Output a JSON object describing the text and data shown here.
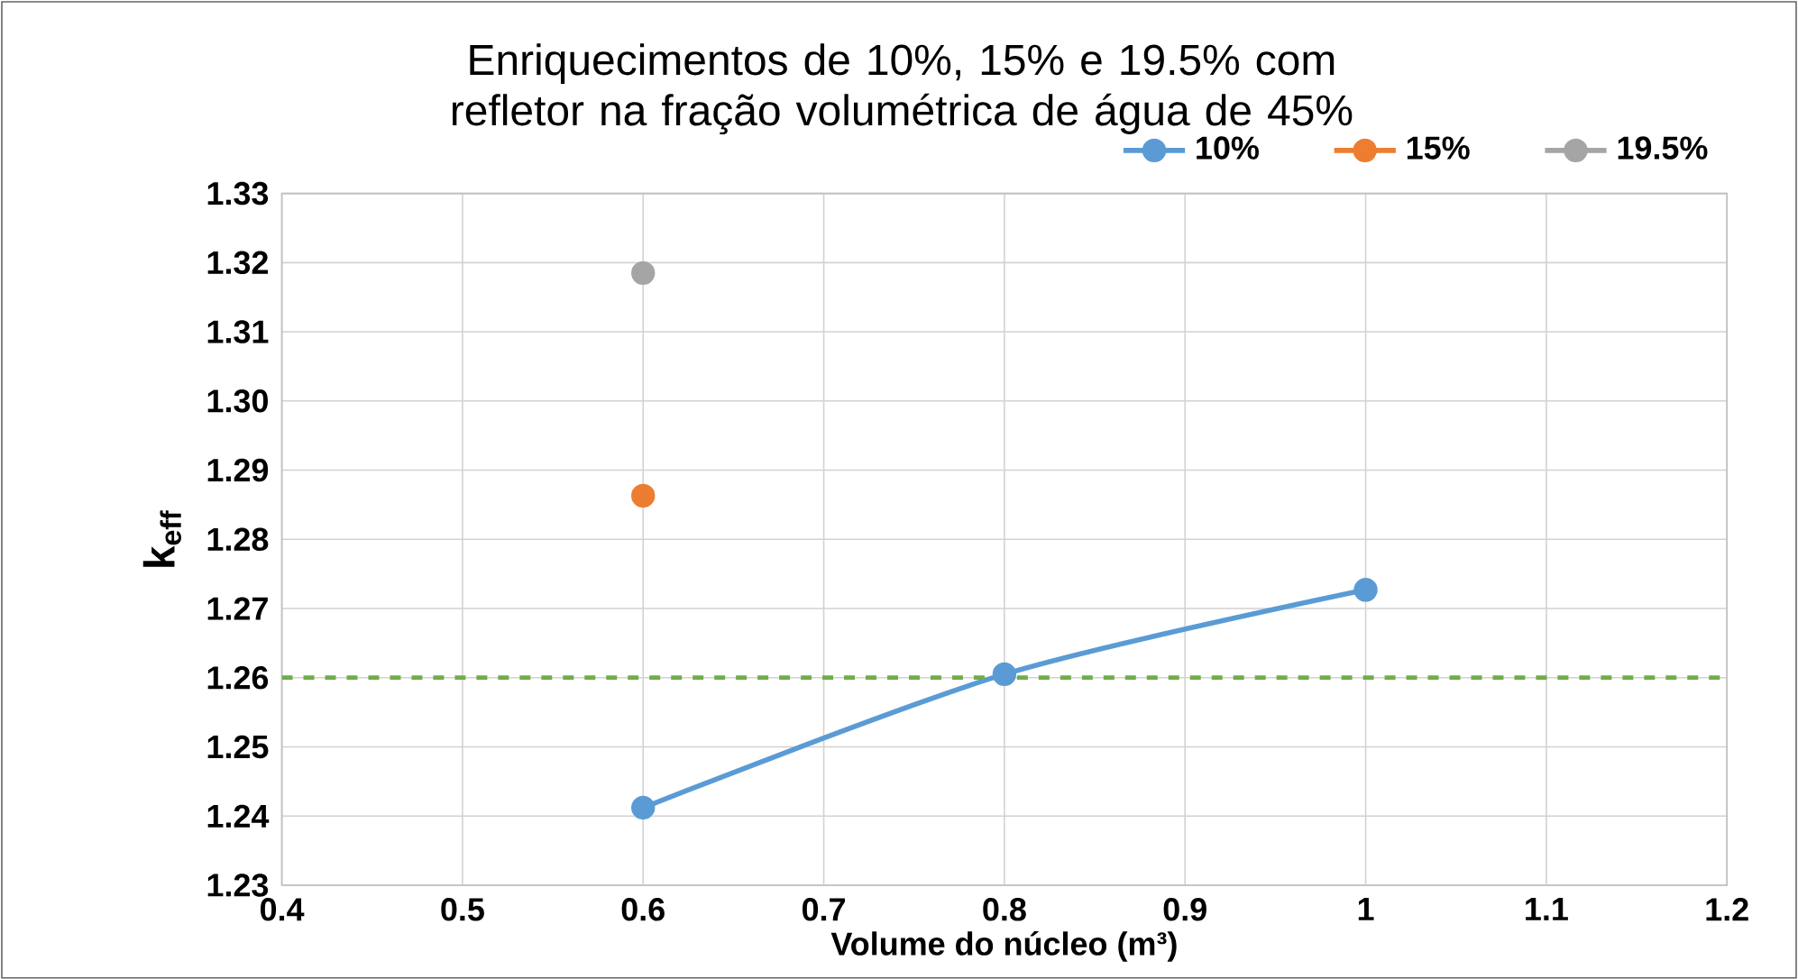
{
  "chart_data": {
    "type": "line",
    "title": "Enriquecimentos de 10%, 15% e 19.5% com refletor na fração volumétrica  de água de 45%",
    "xlabel": "Volume do núcleo (m³)",
    "ylabel": "k$_{eff}$",
    "series": [
      {
        "name": "10%",
        "color": "#5b9bd5",
        "x": [
          0.6,
          0.8,
          1.0
        ],
        "values": [
          1.2412,
          1.2605,
          1.2727
        ]
      },
      {
        "name": "15%",
        "color": "#ed7d31",
        "x": [
          0.6
        ],
        "values": [
          1.2863
        ]
      },
      {
        "name": "19.5%",
        "color": "#a5a5a5",
        "x": [
          0.6
        ],
        "values": [
          1.3185
        ]
      }
    ],
    "xlim": [
      0.4,
      1.2
    ],
    "xticks": [
      0.4,
      0.5,
      0.6,
      0.7,
      0.8,
      0.9,
      1,
      1.1,
      1.2
    ],
    "ylim": [
      1.23,
      1.33
    ],
    "yticks": [
      {
        "value": 1.23,
        "label": "1.23"
      },
      {
        "value": 1.24,
        "label": "1.24"
      },
      {
        "value": 1.25,
        "label": "1.25"
      },
      {
        "value": 1.26,
        "label": "1.26"
      },
      {
        "value": 1.27,
        "label": "1.27"
      },
      {
        "value": 1.28,
        "label": "1.28"
      },
      {
        "value": 1.29,
        "label": "1.29"
      },
      {
        "value": 1.3,
        "label": "1.30"
      },
      {
        "value": 1.31,
        "label": "1.31"
      },
      {
        "value": 1.32,
        "label": "1.32"
      },
      {
        "value": 1.33,
        "label": "1.33"
      }
    ],
    "ref_lines": [
      {
        "axis": "y",
        "value": 1.26,
        "color": "#70ad47",
        "line_style": "dashed"
      }
    ],
    "grid": true,
    "legend": "top right",
    "marker": "circle",
    "line_style": "solid"
  }
}
